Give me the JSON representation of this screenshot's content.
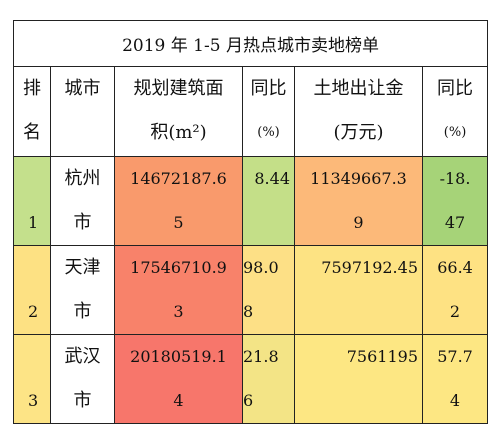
{
  "title": "2019 年 1-5 月热点城市卖地榜单",
  "headers": {
    "rank": [
      "排",
      "名"
    ],
    "city": [
      "",
      "城市"
    ],
    "area": [
      "规划建筑面",
      "积(m²)"
    ],
    "area_yoy": [
      "同比",
      "(%)"
    ],
    "revenue": [
      "土地出让金",
      "(万元)"
    ],
    "revenue_yoy": [
      "同比",
      "(%)"
    ]
  },
  "rows": [
    {
      "rank": "1",
      "city": [
        "杭州",
        "市"
      ],
      "area": [
        "14672187.6",
        "5"
      ],
      "area_yoy": [
        "",
        "8.44"
      ],
      "revenue": [
        "11349667.3",
        "9"
      ],
      "revenue_yoy": [
        "-18.",
        "47"
      ],
      "colors": {
        "rank": "#c4e08c",
        "city": "#ffffff",
        "area": "#f99a6c",
        "area_yoy": "#c4df88",
        "revenue": "#fcb979",
        "revenue_yoy": "#a6d378"
      }
    },
    {
      "rank": "2",
      "city": [
        "天津",
        "市"
      ],
      "area": [
        "17546710.9",
        "3"
      ],
      "area_yoy": [
        "98.0",
        "8"
      ],
      "revenue": [
        "",
        "7597192.45"
      ],
      "revenue_yoy": [
        "66.4",
        "2"
      ],
      "colors": {
        "rank": "#fde183",
        "city": "#ffffff",
        "area": "#f8826a",
        "area_yoy": "#fde086",
        "revenue": "#fde383",
        "revenue_yoy": "#fee283"
      }
    },
    {
      "rank": "3",
      "city": [
        "武汉",
        "市"
      ],
      "area": [
        "20180519.1",
        "4"
      ],
      "area_yoy": [
        "21.8",
        "6"
      ],
      "revenue": [
        "",
        "7561195"
      ],
      "revenue_yoy": [
        "57.7",
        "4"
      ],
      "colors": {
        "rank": "#fde486",
        "city": "#ffffff",
        "area": "#f7766b",
        "area_yoy": "#f3e486",
        "revenue": "#fde783",
        "revenue_yoy": "#fde783"
      }
    }
  ]
}
